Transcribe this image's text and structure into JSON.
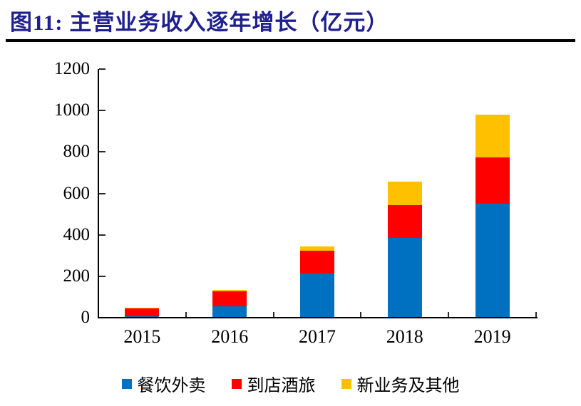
{
  "title": "图11:  主营业务收入逐年增长（亿元）",
  "colors": {
    "title_navy": "#1F1F8F",
    "rule_black": "#000000",
    "axis_black": "#000000",
    "series_blue": "#0070C0",
    "series_red": "#FF0000",
    "series_yellow": "#FFC000"
  },
  "chart_data": {
    "type": "bar",
    "stacked": true,
    "title": "主营业务收入逐年增长（亿元）",
    "unit": "亿元",
    "categories": [
      "2015",
      "2016",
      "2017",
      "2018",
      "2019"
    ],
    "series": [
      {
        "name": "餐饮外卖",
        "color": "#0070C0",
        "values": [
          1.7,
          53.0,
          210.3,
          381.4,
          548.4
        ]
      },
      {
        "name": "到店酒旅",
        "color": "#FF0000",
        "values": [
          37.7,
          70.2,
          108.5,
          158.4,
          222.7
        ]
      },
      {
        "name": "新业务及其他",
        "color": "#FFC000",
        "values": [
          0.7,
          6.7,
          20.4,
          112.4,
          204.2
        ]
      }
    ],
    "totals": [
      40.1,
      129.9,
      339.2,
      652.2,
      975.3
    ],
    "ylim": [
      0,
      1200
    ],
    "yticks": [
      0,
      200,
      400,
      600,
      800,
      1000,
      1200
    ],
    "grid": false,
    "legend_position": "bottom"
  },
  "legend": {
    "items": [
      {
        "label": "餐饮外卖",
        "color": "#0070C0"
      },
      {
        "label": "到店酒旅",
        "color": "#FF0000"
      },
      {
        "label": "新业务及其他",
        "color": "#FFC000"
      }
    ]
  }
}
